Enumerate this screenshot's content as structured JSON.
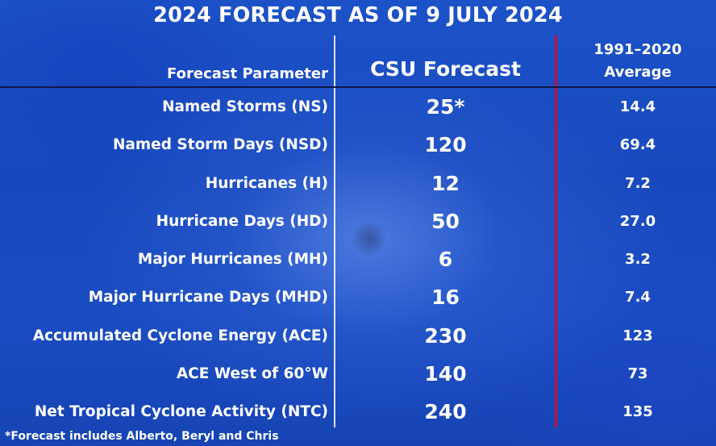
{
  "title": "2024 FORECAST AS OF 9 JULY 2024",
  "header": {
    "parameter": "Forecast Parameter",
    "csu": "CSU Forecast",
    "average_line1": "1991–2020",
    "average_line2": "Average"
  },
  "rows": [
    {
      "parameter": "Named Storms (NS)",
      "csu": "25*",
      "average": "14.4"
    },
    {
      "parameter": "Named Storm Days (NSD)",
      "csu": "120",
      "average": "69.4"
    },
    {
      "parameter": "Hurricanes (H)",
      "csu": "12",
      "average": "7.2"
    },
    {
      "parameter": "Hurricane Days (HD)",
      "csu": "50",
      "average": "27.0"
    },
    {
      "parameter": "Major Hurricanes (MH)",
      "csu": "6",
      "average": "3.2"
    },
    {
      "parameter": "Major Hurricane Days (MHD)",
      "csu": "16",
      "average": "7.4"
    },
    {
      "parameter": "Accumulated Cyclone Energy (ACE)",
      "csu": "230",
      "average": "123"
    },
    {
      "parameter": "ACE West of 60°W",
      "csu": "140",
      "average": "73"
    },
    {
      "parameter": "Net Tropical Cyclone Activity (NTC)",
      "csu": "240",
      "average": "135"
    }
  ],
  "footnote": "*Forecast includes Alberto, Beryl and Chris",
  "colors": {
    "background": "#1848bd",
    "text": "#ffffff",
    "divider_red": "#c8102e",
    "header_rule": "#0a1845"
  }
}
